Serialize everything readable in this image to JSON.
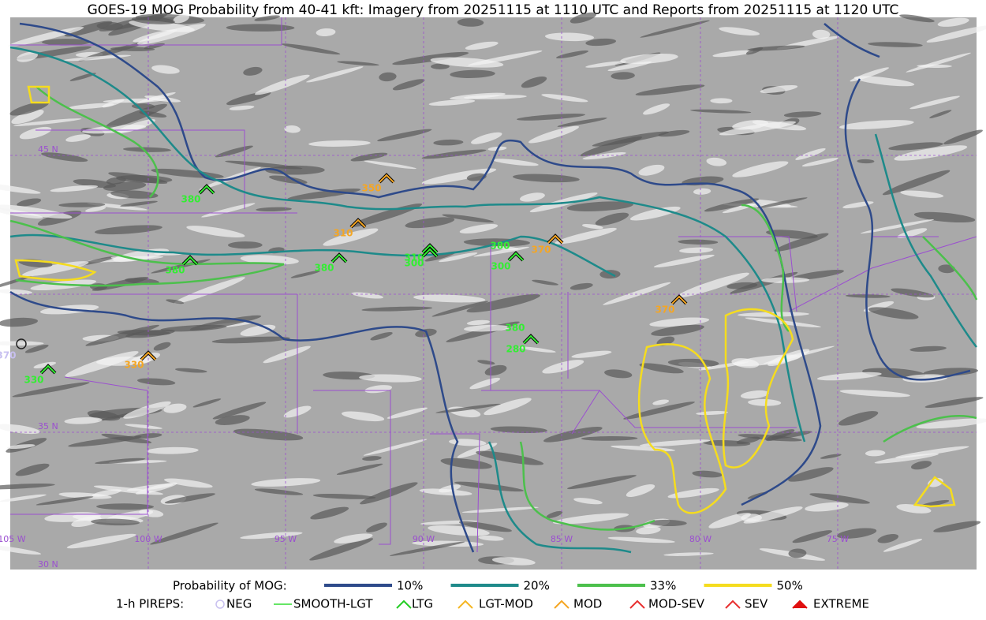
{
  "title": "GOES-19 MOG Probability from 40-41 kft: Imagery from 20251115 at 1110 UTC and Reports from 20251115 at 1120 UTC",
  "map": {
    "lat_labels": [
      "45 N",
      "35 N",
      "30 N"
    ],
    "lon_labels": [
      "105 W",
      "100 W",
      "95 W",
      "90 W",
      "85 W",
      "80 W",
      "75 W"
    ]
  },
  "reports": [
    {
      "altitude": 380,
      "color": "#33ee33"
    },
    {
      "altitude": 350,
      "color": "#f5a623"
    },
    {
      "altitude": 310,
      "color": "#f5a623"
    },
    {
      "altitude": 380,
      "color": "#33ee33"
    },
    {
      "altitude": 380,
      "color": "#33ee33"
    },
    {
      "altitude": 310,
      "color": "#33ee33"
    },
    {
      "altitude": 300,
      "color": "#33ee33"
    },
    {
      "altitude": 380,
      "color": "#33ee33"
    },
    {
      "altitude": 300,
      "color": "#33ee33"
    },
    {
      "altitude": 370,
      "color": "#f5a623"
    },
    {
      "altitude": 370,
      "color": "#f5a623"
    },
    {
      "altitude": 380,
      "color": "#33ee33"
    },
    {
      "altitude": 280,
      "color": "#33ee33"
    },
    {
      "altitude": 330,
      "color": "#f5a623"
    },
    {
      "altitude": 330,
      "color": "#33ee33"
    },
    {
      "altitude": 370,
      "color": "#c8c0f0"
    }
  ],
  "legend": {
    "probability_title": "Probability of MOG:",
    "probability_levels": [
      {
        "label": "10%",
        "color": "#2e4a8a"
      },
      {
        "label": "20%",
        "color": "#1e8a8a"
      },
      {
        "label": "33%",
        "color": "#4cc04c"
      },
      {
        "label": "50%",
        "color": "#f5dc1e"
      }
    ],
    "pireps_title": "1-h PIREPS:",
    "pirep_types": [
      {
        "label": "NEG",
        "color": "#c8c0f0"
      },
      {
        "label": "SMOOTH-LGT",
        "color": "#33dd33"
      },
      {
        "label": "LTG",
        "color": "#22cc22"
      },
      {
        "label": "LGT-MOD",
        "color": "#f5b623"
      },
      {
        "label": "MOD",
        "color": "#f5a623"
      },
      {
        "label": "MOD-SEV",
        "color": "#e83030"
      },
      {
        "label": "SEV",
        "color": "#e83030"
      },
      {
        "label": "EXTREME",
        "color": "#e01010"
      }
    ]
  }
}
